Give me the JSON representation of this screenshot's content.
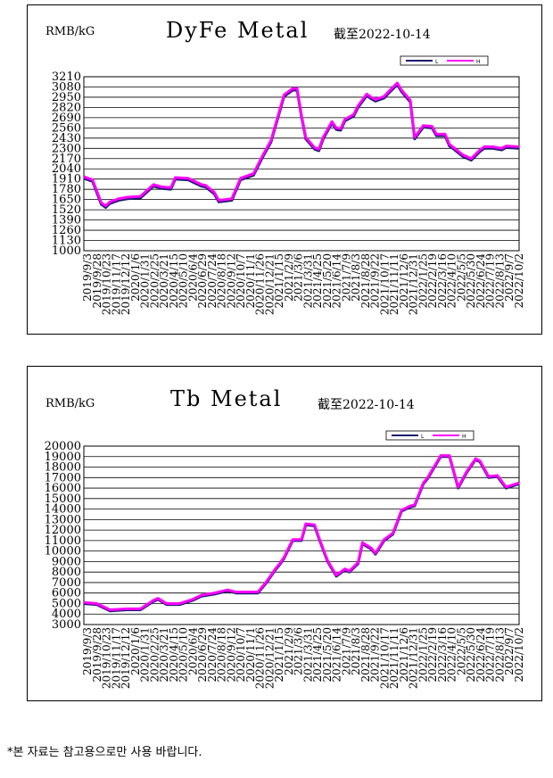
{
  "footnote": "*본 자료는 참고용으로만 사용 바랍니다.",
  "colors": {
    "low": "#1a1a6e",
    "high": "#ff00ff",
    "grid": "#000000"
  },
  "chart_data": [
    {
      "type": "line",
      "title": "DyFe Metal",
      "unit": "RMB/kG",
      "date_note": "截至2022-10-14",
      "legend": [
        "L",
        "H"
      ],
      "legend_position": "top-right",
      "grid": true,
      "ylim": [
        1000,
        3210
      ],
      "yticks": [
        1000,
        1130,
        1260,
        1390,
        1520,
        1650,
        1780,
        1910,
        2040,
        2170,
        2300,
        2430,
        2560,
        2690,
        2820,
        2950,
        3080,
        3210
      ],
      "xtick_labels": [
        "2019/9/3",
        "2019/9/28",
        "2019/10/23",
        "2019/11/17",
        "2019/12/12",
        "2020/1/6",
        "2020/1/31",
        "2020/2/25",
        "2020/3/21",
        "2020/4/15",
        "2020/5/10",
        "2020/6/4",
        "2020/6/29",
        "2020/7/24",
        "2020/8/18",
        "2020/9/12",
        "2020/10/7",
        "2020/11/1",
        "2020/11/26",
        "2020/12/21",
        "2021/1/15",
        "2021/2/9",
        "2021/3/6",
        "2021/3/31",
        "2021/4/25",
        "2021/5/20",
        "2021/6/14",
        "2021/7/9",
        "2021/8/3",
        "2021/8/28",
        "2021/9/22",
        "2021/10/17",
        "2021/11/11",
        "2021/12/6",
        "2021/12/31",
        "2022/1/25",
        "2022/2/19",
        "2022/3/16",
        "2022/4/10",
        "2022/5/5",
        "2022/5/30",
        "2022/6/24",
        "2022/7/19",
        "2022/8/13",
        "2022/9/7",
        "2022/10/2"
      ],
      "series": [
        {
          "name": "L",
          "x": [
            0,
            0.02,
            0.04,
            0.05,
            0.06,
            0.08,
            0.1,
            0.13,
            0.16,
            0.18,
            0.2,
            0.21,
            0.24,
            0.27,
            0.28,
            0.3,
            0.31,
            0.34,
            0.36,
            0.39,
            0.41,
            0.43,
            0.46,
            0.48,
            0.49,
            0.5,
            0.51,
            0.53,
            0.54,
            0.55,
            0.57,
            0.58,
            0.59,
            0.6,
            0.62,
            0.63,
            0.65,
            0.66,
            0.67,
            0.69,
            0.7,
            0.72,
            0.73,
            0.75,
            0.76,
            0.78,
            0.8,
            0.81,
            0.83,
            0.84,
            0.85,
            0.87,
            0.89,
            0.91,
            0.92,
            0.94,
            0.96,
            0.97,
            1
          ],
          "y": [
            1920,
            1880,
            1590,
            1550,
            1600,
            1640,
            1660,
            1670,
            1820,
            1790,
            1780,
            1910,
            1900,
            1820,
            1810,
            1720,
            1620,
            1640,
            1900,
            1960,
            2180,
            2380,
            2960,
            3040,
            3040,
            2700,
            2420,
            2290,
            2270,
            2420,
            2620,
            2540,
            2530,
            2650,
            2710,
            2820,
            2970,
            2930,
            2900,
            2940,
            3000,
            3110,
            3020,
            2890,
            2420,
            2570,
            2560,
            2460,
            2460,
            2330,
            2290,
            2200,
            2150,
            2260,
            2300,
            2300,
            2280,
            2310,
            2300
          ]
        },
        {
          "name": "H",
          "x": [
            0,
            0.02,
            0.04,
            0.05,
            0.06,
            0.08,
            0.1,
            0.13,
            0.16,
            0.18,
            0.2,
            0.21,
            0.24,
            0.27,
            0.28,
            0.3,
            0.31,
            0.34,
            0.36,
            0.39,
            0.41,
            0.43,
            0.46,
            0.48,
            0.49,
            0.5,
            0.51,
            0.53,
            0.54,
            0.55,
            0.57,
            0.58,
            0.59,
            0.6,
            0.62,
            0.63,
            0.65,
            0.66,
            0.67,
            0.69,
            0.7,
            0.72,
            0.73,
            0.75,
            0.76,
            0.78,
            0.8,
            0.81,
            0.83,
            0.84,
            0.85,
            0.87,
            0.89,
            0.91,
            0.92,
            0.94,
            0.96,
            0.97,
            1
          ],
          "y": [
            1940,
            1900,
            1610,
            1570,
            1620,
            1660,
            1680,
            1690,
            1840,
            1810,
            1800,
            1930,
            1920,
            1840,
            1830,
            1740,
            1640,
            1660,
            1920,
            1980,
            2200,
            2400,
            2980,
            3060,
            3060,
            2720,
            2440,
            2310,
            2290,
            2440,
            2640,
            2560,
            2550,
            2670,
            2730,
            2840,
            2990,
            2950,
            2920,
            2960,
            3020,
            3130,
            3040,
            2910,
            2440,
            2590,
            2580,
            2480,
            2480,
            2350,
            2310,
            2220,
            2170,
            2280,
            2320,
            2320,
            2300,
            2330,
            2320
          ]
        }
      ]
    },
    {
      "type": "line",
      "title": "Tb Metal",
      "unit": "RMB/kG",
      "date_note": "截至2022-10-14",
      "legend": [
        "L",
        "H"
      ],
      "legend_position": "top-right",
      "grid": true,
      "ylim": [
        3000,
        20000
      ],
      "yticks": [
        3000,
        4000,
        5000,
        6000,
        7000,
        8000,
        9000,
        10000,
        11000,
        12000,
        13000,
        14000,
        15000,
        16000,
        17000,
        18000,
        19000,
        20000
      ],
      "xtick_labels": [
        "2019/9/3",
        "2019/9/28",
        "2019/10/23",
        "2019/11/17",
        "2019/12/12",
        "2020/1/6",
        "2020/1/31",
        "2020/2/25",
        "2020/3/21",
        "2020/4/15",
        "2020/5/10",
        "2020/6/4",
        "2020/6/29",
        "2020/7/24",
        "2020/8/18",
        "2020/9/12",
        "2020/10/7",
        "2020/11/1",
        "2020/11/26",
        "2020/12/21",
        "2021/1/15",
        "2021/2/9",
        "2021/3/6",
        "2021/3/31",
        "2021/4/25",
        "2021/5/20",
        "2021/6/14",
        "2021/7/9",
        "2021/8/3",
        "2021/8/28",
        "2021/9/22",
        "2021/10/17",
        "2021/11/11",
        "2021/12/6",
        "2021/12/31",
        "2022/1/25",
        "2022/2/19",
        "2022/3/16",
        "2022/4/10",
        "2022/5/5",
        "2022/5/30",
        "2022/6/24",
        "2022/7/19",
        "2022/8/13",
        "2022/9/7",
        "2022/10/2"
      ],
      "series": [
        {
          "name": "L",
          "x": [
            0,
            0.03,
            0.06,
            0.1,
            0.13,
            0.16,
            0.17,
            0.19,
            0.22,
            0.25,
            0.27,
            0.3,
            0.33,
            0.35,
            0.38,
            0.4,
            0.42,
            0.44,
            0.45,
            0.46,
            0.48,
            0.5,
            0.51,
            0.53,
            0.54,
            0.56,
            0.58,
            0.6,
            0.61,
            0.63,
            0.64,
            0.66,
            0.67,
            0.69,
            0.71,
            0.73,
            0.75,
            0.76,
            0.78,
            0.79,
            0.82,
            0.84,
            0.86,
            0.88,
            0.9,
            0.91,
            0.93,
            0.95,
            0.97,
            1
          ],
          "y": [
            5000,
            4900,
            4300,
            4400,
            4400,
            5200,
            5400,
            4900,
            4900,
            5300,
            5700,
            5900,
            6200,
            6000,
            6000,
            6000,
            7000,
            8200,
            8700,
            9300,
            11000,
            11000,
            12500,
            12400,
            11200,
            9000,
            7600,
            8200,
            8000,
            8800,
            10700,
            10200,
            9700,
            11000,
            11600,
            13800,
            14200,
            14300,
            16400,
            16900,
            19000,
            19000,
            16000,
            17500,
            18700,
            18500,
            17000,
            17100,
            16000,
            16400
          ]
        },
        {
          "name": "H",
          "x": [
            0,
            0.03,
            0.06,
            0.1,
            0.13,
            0.16,
            0.17,
            0.19,
            0.22,
            0.25,
            0.27,
            0.3,
            0.33,
            0.35,
            0.38,
            0.4,
            0.42,
            0.44,
            0.45,
            0.46,
            0.48,
            0.5,
            0.51,
            0.53,
            0.54,
            0.56,
            0.58,
            0.6,
            0.61,
            0.63,
            0.64,
            0.66,
            0.67,
            0.69,
            0.71,
            0.73,
            0.75,
            0.76,
            0.78,
            0.79,
            0.82,
            0.84,
            0.86,
            0.88,
            0.9,
            0.91,
            0.93,
            0.95,
            0.97,
            1
          ],
          "y": [
            5100,
            5000,
            4400,
            4500,
            4500,
            5300,
            5500,
            5000,
            5000,
            5400,
            5800,
            6000,
            6300,
            6100,
            6100,
            6100,
            7100,
            8300,
            8800,
            9400,
            11100,
            11100,
            12600,
            12500,
            11300,
            9100,
            7700,
            8300,
            8100,
            8900,
            10800,
            10300,
            9800,
            11100,
            11700,
            13900,
            14300,
            14400,
            16500,
            17000,
            19100,
            19100,
            16100,
            17600,
            18800,
            18600,
            17100,
            17200,
            16100,
            16500
          ]
        }
      ]
    }
  ]
}
